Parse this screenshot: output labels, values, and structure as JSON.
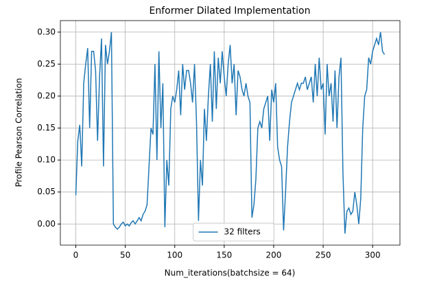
{
  "chart_data": {
    "type": "line",
    "title": "Enformer Dilated Implementation",
    "xlabel": "Num_iterations(batchsize = 64)",
    "ylabel": "Profile Pearson Correlation",
    "x": [
      0,
      2,
      4,
      6,
      8,
      10,
      12,
      14,
      16,
      18,
      20,
      22,
      24,
      26,
      28,
      30,
      32,
      34,
      36,
      38,
      40,
      42,
      44,
      46,
      48,
      50,
      52,
      54,
      56,
      58,
      60,
      62,
      64,
      66,
      68,
      70,
      72,
      74,
      76,
      78,
      80,
      82,
      84,
      86,
      88,
      90,
      92,
      94,
      96,
      98,
      100,
      102,
      104,
      106,
      108,
      110,
      112,
      114,
      116,
      118,
      120,
      122,
      124,
      126,
      128,
      130,
      132,
      134,
      136,
      138,
      140,
      142,
      144,
      146,
      148,
      150,
      152,
      154,
      156,
      158,
      160,
      162,
      164,
      166,
      168,
      170,
      172,
      174,
      176,
      178,
      180,
      182,
      184,
      186,
      188,
      190,
      192,
      194,
      196,
      198,
      200,
      202,
      204,
      206,
      208,
      210,
      212,
      214,
      216,
      218,
      220,
      222,
      224,
      226,
      228,
      230,
      232,
      234,
      236,
      238,
      240,
      242,
      244,
      246,
      248,
      250,
      252,
      254,
      256,
      258,
      260,
      262,
      264,
      266,
      268,
      270,
      272,
      274,
      276,
      278,
      280,
      282,
      284,
      286,
      288,
      290,
      292,
      294,
      296,
      298,
      300,
      302,
      304,
      306,
      308,
      310,
      312
    ],
    "series": [
      {
        "name": "32 filters",
        "color": "#1f77b4",
        "values": [
          0.045,
          0.13,
          0.155,
          0.09,
          0.22,
          0.25,
          0.275,
          0.15,
          0.27,
          0.27,
          0.24,
          0.13,
          0.23,
          0.29,
          0.09,
          0.28,
          0.25,
          0.27,
          0.3,
          0.0,
          -0.005,
          -0.008,
          -0.005,
          0.0,
          0.003,
          -0.003,
          0.0,
          -0.003,
          0.002,
          0.005,
          0.0,
          0.005,
          0.01,
          0.005,
          0.015,
          0.02,
          0.03,
          0.09,
          0.15,
          0.14,
          0.25,
          0.1,
          0.27,
          0.15,
          0.22,
          -0.005,
          0.1,
          0.06,
          0.18,
          0.2,
          0.19,
          0.21,
          0.24,
          0.17,
          0.25,
          0.21,
          0.24,
          0.24,
          0.22,
          0.19,
          0.25,
          0.16,
          0.005,
          0.1,
          0.06,
          0.18,
          0.13,
          0.2,
          0.25,
          0.16,
          0.27,
          0.18,
          0.26,
          0.22,
          0.27,
          0.23,
          0.2,
          0.25,
          0.28,
          0.22,
          0.25,
          0.17,
          0.24,
          0.23,
          0.21,
          0.2,
          0.22,
          0.2,
          0.19,
          0.01,
          0.03,
          0.07,
          0.15,
          0.16,
          0.15,
          0.18,
          0.19,
          0.2,
          0.13,
          0.21,
          0.19,
          0.22,
          0.12,
          0.1,
          0.09,
          -0.01,
          0.05,
          0.12,
          0.16,
          0.19,
          0.2,
          0.21,
          0.22,
          0.21,
          0.22,
          0.22,
          0.23,
          0.21,
          0.22,
          0.23,
          0.19,
          0.25,
          0.2,
          0.26,
          0.21,
          0.22,
          0.14,
          0.25,
          0.2,
          0.22,
          0.16,
          0.24,
          0.15,
          0.23,
          0.26,
          0.08,
          -0.015,
          0.02,
          0.025,
          0.015,
          0.02,
          0.05,
          0.03,
          0.0,
          0.04,
          0.15,
          0.2,
          0.21,
          0.26,
          0.25,
          0.27,
          0.28,
          0.29,
          0.28,
          0.3,
          0.27,
          0.265
        ]
      }
    ],
    "xlim": [
      -15.6,
      327.6
    ],
    "ylim": [
      -0.033,
      0.318
    ],
    "xticks": [
      0,
      50,
      100,
      150,
      200,
      250,
      300
    ],
    "yticks": [
      {
        "value": 0,
        "label": "0.00"
      },
      {
        "value": 0.05,
        "label": "0.05"
      },
      {
        "value": 0.1,
        "label": "0.10"
      },
      {
        "value": 0.15,
        "label": "0.15"
      },
      {
        "value": 0.2,
        "label": "0.20"
      },
      {
        "value": 0.25,
        "label": "0.25"
      },
      {
        "value": 0.3,
        "label": "0.30"
      }
    ],
    "grid": true,
    "legend": "lower center"
  }
}
